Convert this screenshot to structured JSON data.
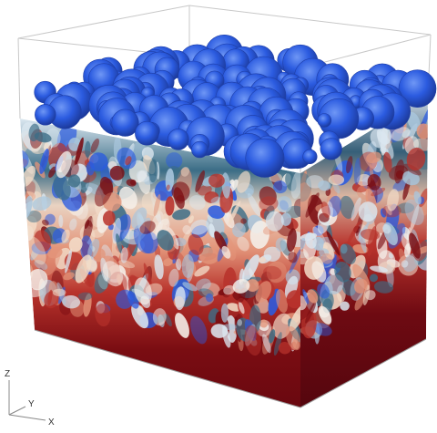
{
  "scene": {
    "axis_labels": {
      "z": "Z",
      "y": "Y",
      "x": "X"
    },
    "colors": {
      "background": "#ffffff",
      "box_line": "#c8c8c8",
      "blue_dark": "#1f3fa8",
      "blue": "#2b5be0",
      "blue_light": "#4c7df0",
      "teal": "#3b6d86",
      "pale": "#dbe7f0",
      "cream": "#f2dcc8",
      "salmon": "#e3957a",
      "red": "#b8332c",
      "red_dark": "#7a0d12",
      "red_darker": "#5e0610"
    }
  }
}
